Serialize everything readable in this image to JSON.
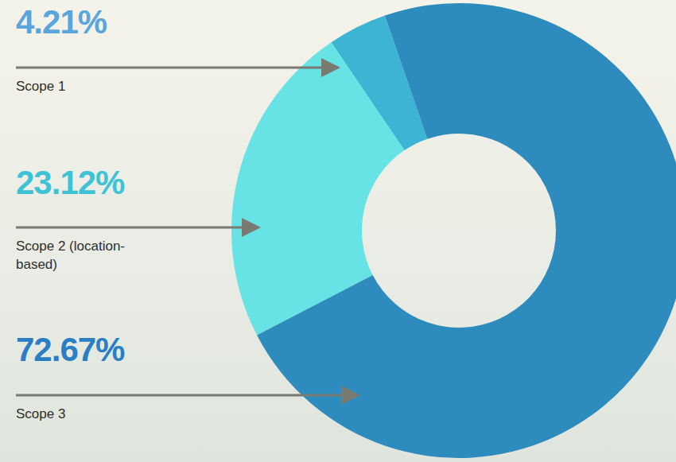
{
  "chart_data": {
    "type": "pie",
    "categories": [
      "Scope 1",
      "Scope 2 (location-based)",
      "Scope 3"
    ],
    "values": [
      4.21,
      23.12,
      72.67
    ],
    "value_labels": [
      "4.21%",
      "23.12%",
      "72.67%"
    ],
    "colors": [
      "#3db4d4",
      "#67e3e6",
      "#2e8bbd"
    ],
    "data_labels": true
  }
}
